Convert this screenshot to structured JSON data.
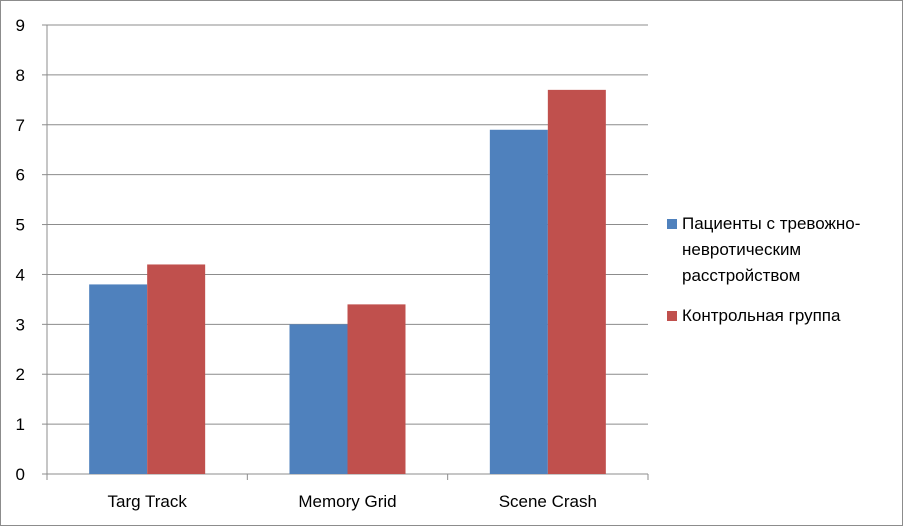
{
  "chart_data": {
    "type": "bar",
    "title": "",
    "xlabel": "",
    "ylabel": "",
    "categories": [
      "Targ Track",
      "Memory Grid",
      "Scene Crash"
    ],
    "series": [
      {
        "name": "Пациенты с тревожно-невротическим расстройством",
        "color": "#4f81bd",
        "values": [
          3.8,
          3.0,
          6.9
        ]
      },
      {
        "name": "Контрольная группа",
        "color": "#c0504d",
        "values": [
          4.2,
          3.4,
          7.7
        ]
      }
    ],
    "ylim": [
      0,
      9
    ],
    "yticks": [
      0,
      1,
      2,
      3,
      4,
      5,
      6,
      7,
      8,
      9
    ],
    "grid": true,
    "legend_position": "right"
  }
}
